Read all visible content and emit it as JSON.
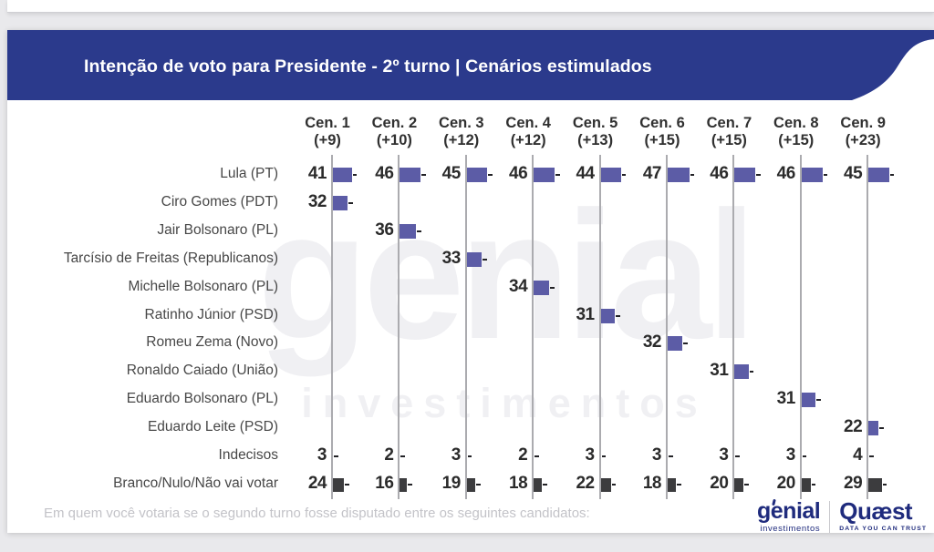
{
  "header": {
    "title": "Intenção de voto para Presidente - 2º turno | Cenários estimulados",
    "band_color": "#2b3a8c"
  },
  "watermark": {
    "line1": "genial",
    "line2": "investimentos"
  },
  "chart_data": {
    "type": "bar",
    "title": "Intenção de voto para Presidente - 2º turno | Cenários estimulados",
    "categories": [
      "Cen. 1",
      "Cen. 2",
      "Cen. 3",
      "Cen. 4",
      "Cen. 5",
      "Cen. 6",
      "Cen. 7",
      "Cen. 8",
      "Cen. 9"
    ],
    "category_margins": [
      "(+9)",
      "(+10)",
      "(+12)",
      "(+12)",
      "(+13)",
      "(+15)",
      "(+15)",
      "(+15)",
      "(+23)"
    ],
    "rows": [
      {
        "label": "Lula (PT)",
        "style": "candidate",
        "values": [
          41,
          46,
          45,
          46,
          44,
          47,
          46,
          46,
          45
        ]
      },
      {
        "label": "Ciro Gomes (PDT)",
        "style": "candidate",
        "values": [
          32,
          null,
          null,
          null,
          null,
          null,
          null,
          null,
          null
        ]
      },
      {
        "label": "Jair Bolsonaro (PL)",
        "style": "candidate",
        "values": [
          null,
          36,
          null,
          null,
          null,
          null,
          null,
          null,
          null
        ]
      },
      {
        "label": "Tarcísio de Freitas (Republicanos)",
        "style": "candidate",
        "values": [
          null,
          null,
          33,
          null,
          null,
          null,
          null,
          null,
          null
        ]
      },
      {
        "label": "Michelle Bolsonaro (PL)",
        "style": "candidate",
        "values": [
          null,
          null,
          null,
          34,
          null,
          null,
          null,
          null,
          null
        ]
      },
      {
        "label": "Ratinho Júnior (PSD)",
        "style": "candidate",
        "values": [
          null,
          null,
          null,
          null,
          31,
          null,
          null,
          null,
          null
        ]
      },
      {
        "label": "Romeu Zema (Novo)",
        "style": "candidate",
        "values": [
          null,
          null,
          null,
          null,
          null,
          32,
          null,
          null,
          null
        ]
      },
      {
        "label": "Ronaldo Caiado (União)",
        "style": "candidate",
        "values": [
          null,
          null,
          null,
          null,
          null,
          null,
          31,
          null,
          null
        ]
      },
      {
        "label": "Eduardo Bolsonaro (PL)",
        "style": "candidate",
        "values": [
          null,
          null,
          null,
          null,
          null,
          null,
          null,
          31,
          null
        ]
      },
      {
        "label": "Eduardo Leite (PSD)",
        "style": "candidate",
        "values": [
          null,
          null,
          null,
          null,
          null,
          null,
          null,
          null,
          22
        ]
      },
      {
        "label": "Indecisos",
        "style": "tick",
        "values": [
          3,
          2,
          3,
          2,
          3,
          3,
          3,
          3,
          4
        ]
      },
      {
        "label": "Branco/Nulo/Não vai votar",
        "style": "dark",
        "values": [
          24,
          16,
          19,
          18,
          22,
          18,
          20,
          20,
          29
        ]
      }
    ],
    "bar_colors": {
      "candidate": "#5c5ca6",
      "dark": "#3c3c3e",
      "tick": "#222226"
    },
    "axis_line_color": "#ababaf",
    "legend_position": "none",
    "grid": "vertical-baselines"
  },
  "footer": {
    "note": "Em quem você votaria se o segundo turno fosse disputado entre os seguintes candidatos:",
    "brand1": {
      "name": "genial",
      "sub": "investimentos"
    },
    "brand2": {
      "name": "Quæst",
      "tagline": "DATA YOU CAN TRUST"
    },
    "logo_color": "#1f2b7d"
  }
}
